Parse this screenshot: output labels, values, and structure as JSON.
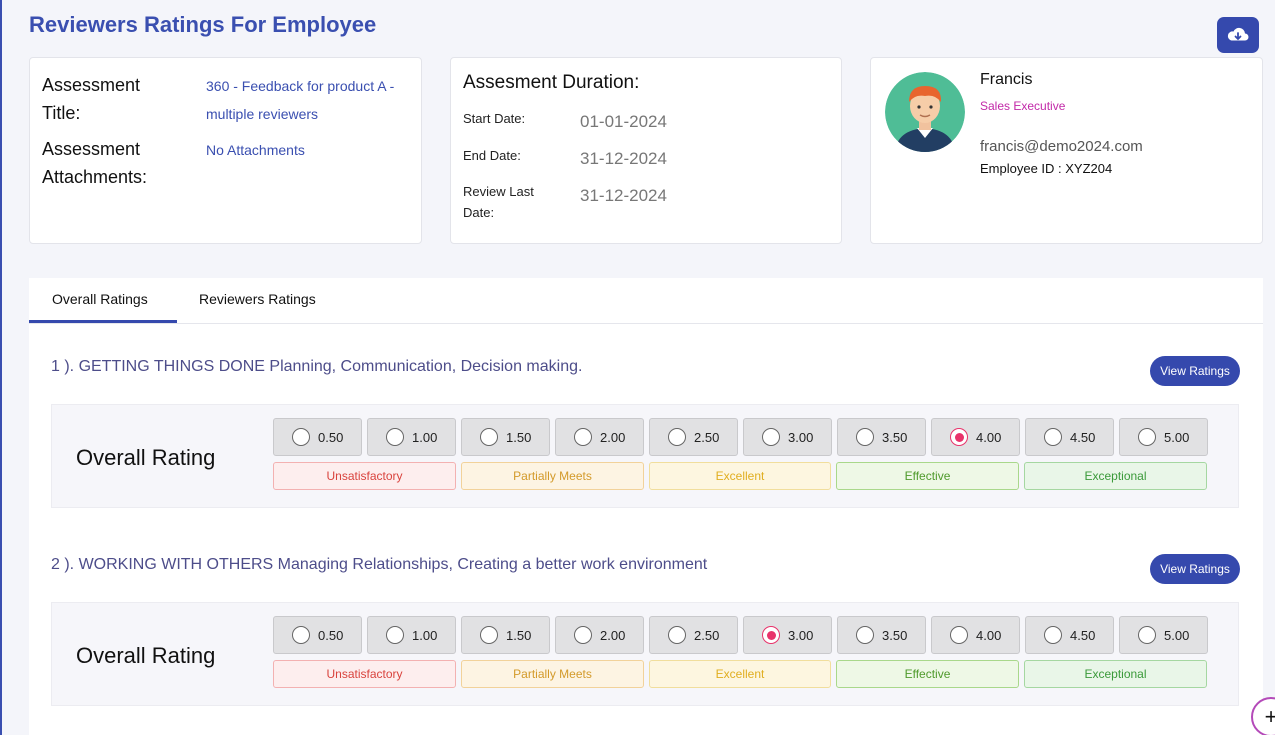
{
  "page": {
    "title": "Reviewers Ratings For Employee"
  },
  "assessment": {
    "title_label": "Assessment Title:",
    "title_value": "360 - Feedback for product A - multiple reviewers",
    "attachments_label": "Assessment Attachments:",
    "attachments_value": "No Attachments"
  },
  "duration": {
    "heading": "Assesment Duration:",
    "start_label": "Start Date:",
    "start_value": "01-01-2024",
    "end_label": "End Date:",
    "end_value": "31-12-2024",
    "review_label": "Review Last Date:",
    "review_value": "31-12-2024"
  },
  "employee": {
    "name": "Francis",
    "role": "Sales Executive",
    "email": "francis@demo2024.com",
    "id_text": "Employee ID : XYZ204"
  },
  "tabs": [
    {
      "label": "Overall Ratings",
      "active": true
    },
    {
      "label": "Reviewers Ratings",
      "active": false
    }
  ],
  "rating_options": [
    "0.50",
    "1.00",
    "1.50",
    "2.00",
    "2.50",
    "3.00",
    "3.50",
    "4.00",
    "4.50",
    "5.00"
  ],
  "categories": [
    "Unsatisfactory",
    "Partially Meets",
    "Excellent",
    "Effective",
    "Exceptional"
  ],
  "questions": [
    {
      "title": "1 ).   GETTING THINGS DONE Planning, Communication, Decision making.",
      "button": "View Ratings",
      "rating_label": "Overall Rating",
      "selected": "4.00"
    },
    {
      "title": "2 ).   WORKING WITH OTHERS Managing Relationships, Creating a better work environment",
      "button": "View Ratings",
      "rating_label": "Overall Rating",
      "selected": "3.00"
    }
  ],
  "icons": {
    "download": "cloud-download-icon",
    "avatar": "user-avatar",
    "fab": "plus-icon"
  },
  "fab_label": "+"
}
